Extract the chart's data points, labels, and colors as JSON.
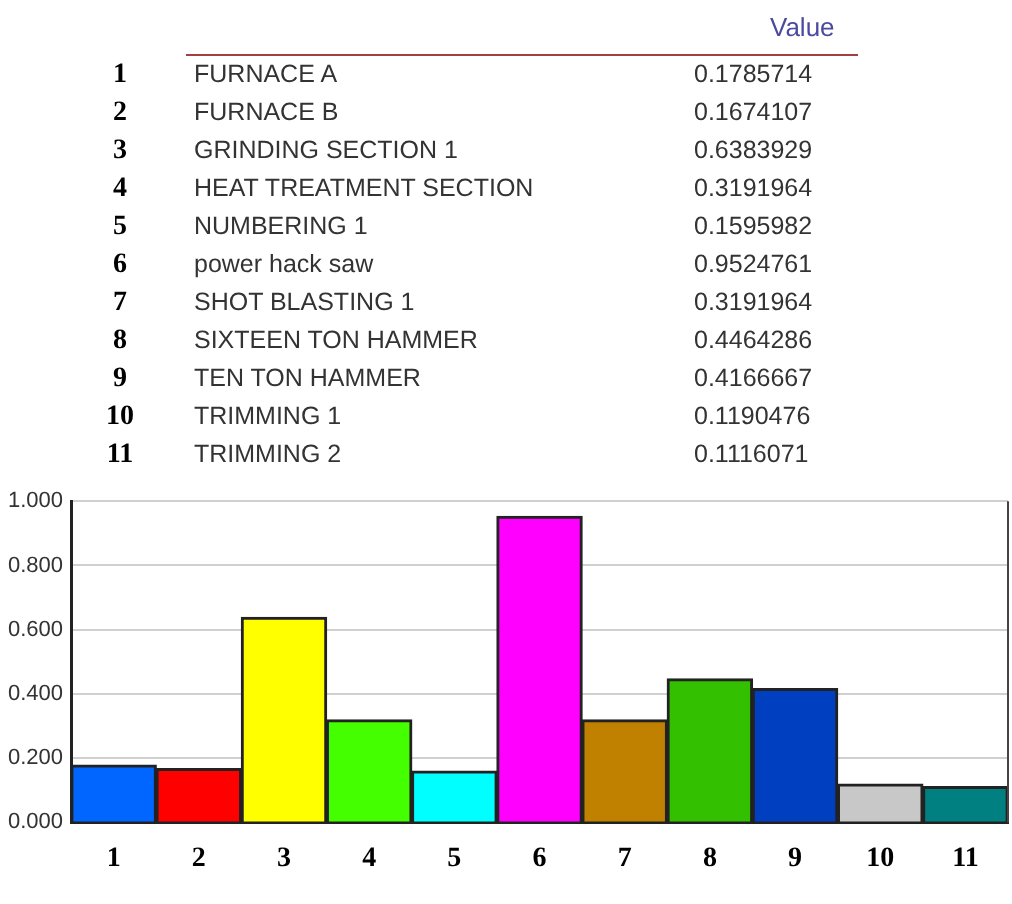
{
  "chart_data": {
    "type": "bar",
    "categories": [
      "1",
      "2",
      "3",
      "4",
      "5",
      "6",
      "7",
      "8",
      "9",
      "10",
      "11"
    ],
    "values": [
      0.1785714,
      0.1674107,
      0.6383929,
      0.3191964,
      0.1595982,
      0.9524761,
      0.3191964,
      0.4464286,
      0.4166667,
      0.1190476,
      0.1116071
    ],
    "colors": [
      "#0066ff",
      "#ff0000",
      "#ffff00",
      "#44ff00",
      "#00ffff",
      "#ff00ff",
      "#c08000",
      "#33c000",
      "#0040c0",
      "#c8c8c8",
      "#008080"
    ],
    "annotations": [
      "Value",
      "FURNACE A",
      "0.1785714",
      "FURNACE B",
      "0.1674107",
      "GRINDING SECTION 1",
      "0.6383929",
      "HEAT TREATMENT SECTION",
      "0.3191964",
      "NUMBERING 1",
      "0.1595982",
      "power hack saw",
      "0.9524761",
      "SHOT BLASTING 1",
      "0.3191964",
      "SIXTEEN TON HAMMER",
      "0.4464286",
      "TEN TON HAMMER",
      "0.4166667",
      "TRIMMING 1",
      "0.1190476",
      "TRIMMING 2",
      "0.1116071"
    ],
    "ylim": [
      0,
      1
    ],
    "yticks": [
      {
        "value": 0,
        "label": "0.000"
      },
      {
        "value": 0.2,
        "label": "0.200"
      },
      {
        "value": 0.4,
        "label": "0.400"
      },
      {
        "value": 0.6,
        "label": "0.600"
      },
      {
        "value": 0.8,
        "label": "0.800"
      },
      {
        "value": 1,
        "label": "1.000"
      }
    ],
    "grid": "y",
    "legend": false
  }
}
